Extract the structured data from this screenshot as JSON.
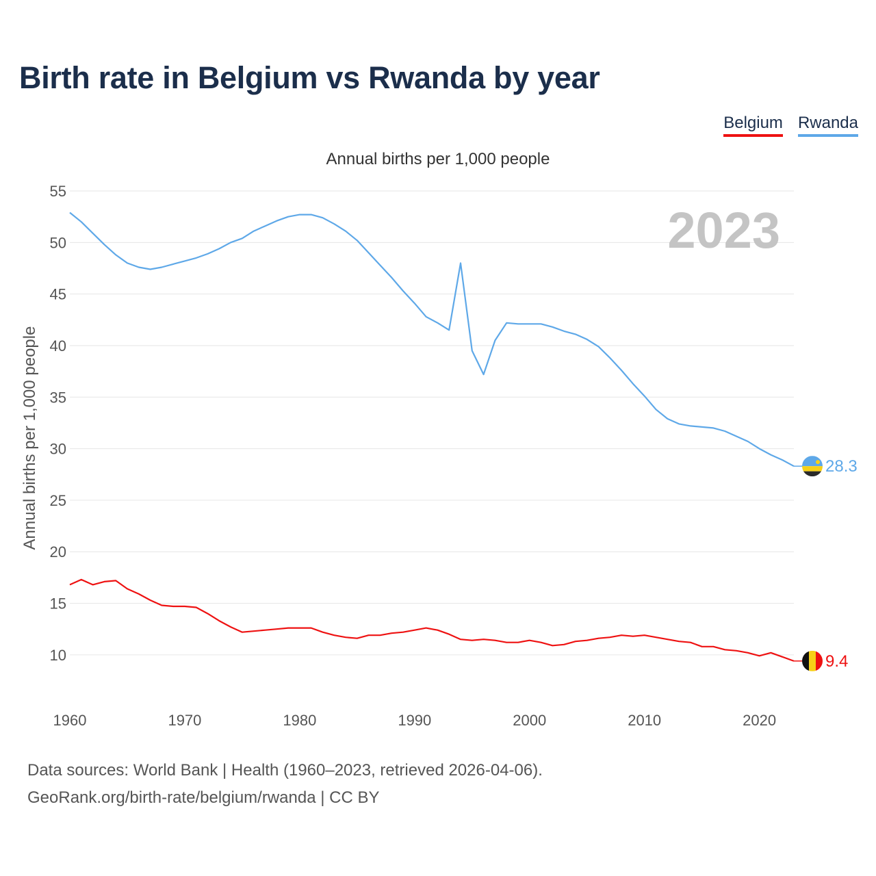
{
  "title": "Birth rate in Belgium vs Rwanda by year",
  "legend": [
    {
      "name": "Belgium",
      "color": "#ee1111"
    },
    {
      "name": "Rwanda",
      "color": "#5ea8e8"
    }
  ],
  "footer": {
    "line1": "Data sources: World Bank | Health (1960–2023, retrieved 2026-04-06).",
    "line2": "GeoRank.org/birth-rate/belgium/rwanda | CC BY"
  },
  "chart_data": {
    "type": "line",
    "title": "Annual births per 1,000 people",
    "ylabel": "Annual births per 1,000 people",
    "xlabel": "",
    "watermark_year": "2023",
    "xlim": [
      1960,
      2023
    ],
    "ylim": [
      7,
      55
    ],
    "x_ticks": [
      1960,
      1970,
      1980,
      1990,
      2000,
      2010,
      2020
    ],
    "y_ticks": [
      10,
      15,
      20,
      25,
      30,
      35,
      40,
      45,
      50,
      55
    ],
    "grid": true,
    "x": [
      1960,
      1961,
      1962,
      1963,
      1964,
      1965,
      1966,
      1967,
      1968,
      1969,
      1970,
      1971,
      1972,
      1973,
      1974,
      1975,
      1976,
      1977,
      1978,
      1979,
      1980,
      1981,
      1982,
      1983,
      1984,
      1985,
      1986,
      1987,
      1988,
      1989,
      1990,
      1991,
      1992,
      1993,
      1994,
      1995,
      1996,
      1997,
      1998,
      1999,
      2000,
      2001,
      2002,
      2003,
      2004,
      2005,
      2006,
      2007,
      2008,
      2009,
      2010,
      2011,
      2012,
      2013,
      2014,
      2015,
      2016,
      2017,
      2018,
      2019,
      2020,
      2021,
      2022,
      2023
    ],
    "series": [
      {
        "name": "Rwanda",
        "color": "#5ea8e8",
        "end_label": "28.3",
        "values": [
          52.9,
          52.0,
          50.9,
          49.8,
          48.8,
          48.0,
          47.6,
          47.4,
          47.6,
          47.9,
          48.2,
          48.5,
          48.9,
          49.4,
          50.0,
          50.4,
          51.1,
          51.6,
          52.1,
          52.5,
          52.7,
          52.7,
          52.4,
          51.8,
          51.1,
          50.2,
          49.0,
          47.8,
          46.6,
          45.3,
          44.1,
          42.8,
          42.2,
          41.5,
          48.0,
          39.5,
          37.2,
          40.5,
          42.2,
          42.1,
          42.1,
          42.1,
          41.8,
          41.4,
          41.1,
          40.6,
          39.9,
          38.8,
          37.6,
          36.3,
          35.1,
          33.8,
          32.9,
          32.4,
          32.2,
          32.1,
          32.0,
          31.7,
          31.2,
          30.7,
          30.0,
          29.4,
          28.9,
          28.3
        ]
      },
      {
        "name": "Belgium",
        "color": "#ee1111",
        "end_label": "9.4",
        "values": [
          16.8,
          17.3,
          16.8,
          17.1,
          17.2,
          16.4,
          15.9,
          15.3,
          14.8,
          14.7,
          14.7,
          14.6,
          14.0,
          13.3,
          12.7,
          12.2,
          12.3,
          12.4,
          12.5,
          12.6,
          12.6,
          12.6,
          12.2,
          11.9,
          11.7,
          11.6,
          11.9,
          11.9,
          12.1,
          12.2,
          12.4,
          12.6,
          12.4,
          12.0,
          11.5,
          11.4,
          11.5,
          11.4,
          11.2,
          11.2,
          11.4,
          11.2,
          10.9,
          11.0,
          11.3,
          11.4,
          11.6,
          11.7,
          11.9,
          11.8,
          11.9,
          11.7,
          11.5,
          11.3,
          11.2,
          10.8,
          10.8,
          10.5,
          10.4,
          10.2,
          9.9,
          10.2,
          9.8,
          9.4
        ]
      }
    ]
  }
}
